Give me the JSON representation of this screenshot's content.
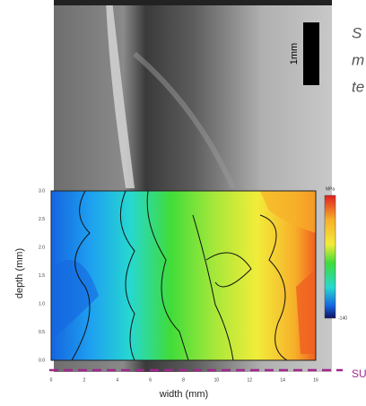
{
  "figure": {
    "scale_bar_label": "1mm",
    "y_axis_label": "depth (mm)",
    "x_axis_label": "width (mm)",
    "y_tick_labels": [
      "3.0",
      "2.5",
      "2.0",
      "1.5",
      "1.0",
      "0.5",
      "0.0"
    ],
    "x_tick_labels": [
      "0",
      "2",
      "4",
      "6",
      "8",
      "10",
      "12",
      "14",
      "16"
    ],
    "colorbar_top_label": "MPa",
    "colorbar_bottom_label": "-140"
  },
  "side_text": [
    "S",
    "m",
    "te"
  ],
  "line_label": "SU"
}
